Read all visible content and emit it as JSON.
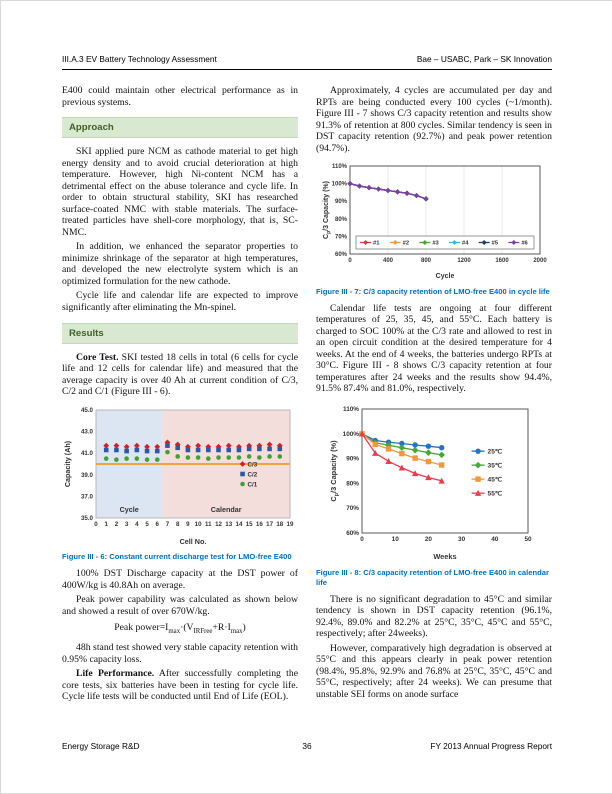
{
  "header": {
    "left": "III.A.3 EV Battery Technology Assessment",
    "right": "Bae – USABC, Park – SK Innovation"
  },
  "footer": {
    "left": "Energy Storage R&D",
    "page": "36",
    "right": "FY 2013 Annual Progress Report"
  },
  "styles": {
    "section_bg": "#d9e8d0",
    "section_border": "#c3d8b4",
    "section_text": "#3f6028",
    "caption_color": "#0070c0"
  },
  "left_column": {
    "blocks": [
      {
        "type": "para",
        "indent": false,
        "text": "E400 could maintain other electrical performance as in previous systems."
      },
      {
        "type": "section",
        "text": "Approach"
      },
      {
        "type": "para",
        "text": "SKI applied pure NCM as cathode material to get high energy density and to avoid crucial deterioration at high temperature. However, high Ni-content NCM has a detrimental effect on the abuse tolerance and cycle life. In order to obtain structural stability, SKI has researched surface-coated NMC with stable materials. The surface-treated particles have shell-core morphology, that is, SC-NMC."
      },
      {
        "type": "para",
        "text": "In addition, we enhanced the separator properties to minimize shrinkage of the separator at high temperatures, and developed the new electrolyte system which is an optimized formulation for the new cathode."
      },
      {
        "type": "para",
        "text": "Cycle life and calendar life are expected to improve significantly after eliminating the Mn-spinel."
      },
      {
        "type": "section",
        "text": "Results"
      },
      {
        "type": "para",
        "bold": "Core Test.",
        "text": " SKI tested 18 cells in total (6 cells for cycle life and 12 cells for calendar life) and measured that the average capacity is over 40 Ah at current condition of C/3, C/2 and C/1 (Figure III - 6)."
      },
      {
        "type": "chart",
        "chart": 0
      },
      {
        "type": "caption",
        "text": "Figure III - 6: Constant current discharge test for LMO-free E400"
      },
      {
        "type": "para",
        "text": "100% DST Discharge capacity at the DST power of 400W/kg is 40.8Ah on average."
      },
      {
        "type": "para",
        "text": "Peak power capability was calculated as shown below and showed a result of over 670W/kg."
      },
      {
        "type": "formula",
        "parts": [
          {
            "t": "Peak power=I"
          },
          {
            "t": "max",
            "sub": true
          },
          {
            "t": "·(V"
          },
          {
            "t": "IRFree",
            "sub": true
          },
          {
            "t": "+R·I"
          },
          {
            "t": "max",
            "sub": true
          },
          {
            "t": ")"
          }
        ]
      },
      {
        "type": "para",
        "text": "48h stand test showed very stable capacity retention with 0.95% capacity loss."
      },
      {
        "type": "para",
        "bold": "Life Performance.",
        "text": " After successfully completing the core tests, six batteries have been in testing for cycle life. Cycle life tests will be conducted until End of Life (EOL)."
      }
    ]
  },
  "right_column": {
    "blocks": [
      {
        "type": "para",
        "text": "Approximately, 4 cycles are accumulated per day and RPTs are being conducted every 100 cycles (~1/month). Figure III - 7 shows C/3 capacity retention and results show 91.3% of retention at 800 cycles. Similar tendency is seen in DST capacity retention (92.7%) and peak power retention (94.7%)."
      },
      {
        "type": "chart",
        "chart": 1
      },
      {
        "type": "caption",
        "text": "Figure III - 7: C/3 capacity retention of LMO-free E400 in cycle life"
      },
      {
        "type": "para",
        "text": "Calendar life tests are ongoing at four different temperatures of 25, 35, 45, and 55°C. Each battery is charged to SOC 100% at the C/3 rate and allowed to rest in an open circuit condition at the desired temperature for 4 weeks. At the end of 4 weeks, the batteries undergo RPTs at 30°C. Figure III - 8 shows C/3 capacity retention at four temperatures after 24 weeks and the results show 94.4%, 91.5% 87.4% and 81.0%, respectively."
      },
      {
        "type": "chart",
        "chart": 2
      },
      {
        "type": "caption",
        "text": "Figure III - 8: C/3 capacity retention of LMO-free E400 in calendar life"
      },
      {
        "type": "para",
        "text": "There is no significant degradation to 45°C and similar tendency is shown in DST capacity retention (96.1%, 92.4%, 89.0% and 82.2% at 25°C, 35°C, 45°C and 55°C, respectively; after 24weeks)."
      },
      {
        "type": "para",
        "text": "However, comparatively high degradation is observed at 55°C and this appears clearly in peak power retention (98.4%, 95.8%, 92.9% and 76.8% at 25°C, 35°C, 45°C and 55°C, respectively; after 24 weeks). We can presume that unstable SEI forms on anode surface"
      }
    ]
  },
  "chart_data": [
    {
      "id": "fig6",
      "name": "figure-iii-6-chart",
      "type": "scatter",
      "title": "",
      "xlabel": "Cell No.",
      "ylabel": [
        {
          "t": "Capacity (Ah)"
        }
      ],
      "xlim": [
        0,
        19
      ],
      "ylim": [
        35,
        45
      ],
      "xticks": [
        0,
        1,
        2,
        3,
        4,
        5,
        6,
        7,
        8,
        9,
        10,
        11,
        12,
        13,
        14,
        15,
        16,
        17,
        18,
        19
      ],
      "xtick_labels": [
        "0",
        "1",
        "2",
        "3",
        "4",
        "5",
        "6",
        "7",
        "8",
        "9",
        "10",
        "11",
        "12",
        "13",
        "14",
        "15",
        "16",
        "17",
        "18",
        "19"
      ],
      "yticks": [
        35,
        37,
        39,
        41,
        43,
        45
      ],
      "ytick_labels": [
        "35.0",
        "37.0",
        "39.0",
        "41.0",
        "43.0",
        "45.0"
      ],
      "grid": "none",
      "regions": [
        {
          "from": 0,
          "to": 6.5,
          "color": "#dce6f2",
          "label": "Cycle"
        },
        {
          "from": 6.5,
          "to": 19,
          "color": "#f3dedb",
          "label": "Calendar"
        }
      ],
      "refline": {
        "y": 40.0,
        "color": "#f2a33c"
      },
      "x": [
        1,
        2,
        3,
        4,
        5,
        6,
        7,
        8,
        9,
        10,
        11,
        12,
        13,
        14,
        15,
        16,
        17,
        18
      ],
      "series": [
        {
          "name": "C/3",
          "marker": "diamond",
          "color": "#d02028",
          "values": [
            41.7,
            41.7,
            41.6,
            41.7,
            41.6,
            41.6,
            42.0,
            41.8,
            41.6,
            41.7,
            41.6,
            41.6,
            41.7,
            41.6,
            41.7,
            41.7,
            41.8,
            41.7
          ]
        },
        {
          "name": "C/2",
          "marker": "square",
          "color": "#2e58a6",
          "values": [
            41.3,
            41.3,
            41.2,
            41.3,
            41.2,
            41.2,
            41.7,
            41.5,
            41.3,
            41.3,
            41.3,
            41.3,
            41.3,
            41.3,
            41.4,
            41.4,
            41.4,
            41.4
          ]
        },
        {
          "name": "C/1",
          "marker": "circle",
          "color": "#3fa03a",
          "values": [
            40.5,
            40.4,
            40.5,
            40.5,
            40.4,
            40.4,
            41.1,
            40.7,
            40.6,
            40.6,
            40.5,
            40.6,
            40.6,
            40.6,
            40.7,
            40.6,
            40.7,
            40.7
          ]
        }
      ],
      "legend_position": "inside-right"
    },
    {
      "id": "fig7",
      "name": "figure-iii-7-chart",
      "type": "line",
      "title": "",
      "xlabel": "Cycle",
      "ylabel": [
        {
          "t": "C"
        },
        {
          "t": "p",
          "sub": true
        },
        {
          "t": "/3 Capacity (%)"
        }
      ],
      "xlim": [
        0,
        2000
      ],
      "ylim": [
        60,
        110
      ],
      "xticks": [
        0,
        400,
        800,
        1200,
        1600,
        2000
      ],
      "xtick_labels": [
        "0",
        "400",
        "800",
        "1200",
        "1600",
        "2000"
      ],
      "yticks": [
        60,
        70,
        80,
        90,
        100,
        110
      ],
      "ytick_labels": [
        "60%",
        "70%",
        "80%",
        "90%",
        "100%",
        "110%"
      ],
      "grid": "v",
      "x": [
        0,
        100,
        200,
        300,
        400,
        500,
        600,
        700,
        800
      ],
      "series": [
        {
          "name": "#1",
          "marker": "diamond",
          "color": "#e0393e",
          "values": [
            100,
            98.6,
            97.7,
            96.9,
            96.1,
            95.3,
            94.5,
            93.2,
            91.3
          ]
        },
        {
          "name": "#2",
          "marker": "diamond",
          "color": "#f79a3d",
          "values": [
            100,
            98.6,
            97.7,
            96.9,
            96.1,
            95.3,
            94.5,
            93.2,
            91.3
          ]
        },
        {
          "name": "#3",
          "marker": "diamond",
          "color": "#4ba32f",
          "values": [
            100,
            98.6,
            97.7,
            96.9,
            96.1,
            95.3,
            94.5,
            93.2,
            91.3
          ]
        },
        {
          "name": "#4",
          "marker": "diamond",
          "color": "#41b0e4",
          "values": [
            100,
            98.6,
            97.7,
            96.9,
            96.1,
            95.3,
            94.5,
            93.2,
            91.3
          ]
        },
        {
          "name": "#5",
          "marker": "diamond",
          "color": "#1f3a68",
          "values": [
            100,
            98.6,
            97.7,
            96.9,
            96.1,
            95.3,
            94.5,
            93.2,
            91.3
          ]
        },
        {
          "name": "#6",
          "marker": "diamond",
          "color": "#7c3fa5",
          "values": [
            100,
            98.6,
            97.7,
            96.9,
            96.1,
            95.3,
            94.5,
            93.2,
            91.3
          ]
        }
      ],
      "legend_position": "inside-bottom-box"
    },
    {
      "id": "fig8",
      "name": "figure-iii-8-chart",
      "type": "line",
      "title": "",
      "xlabel": "Weeks",
      "ylabel": [
        {
          "t": "C"
        },
        {
          "t": "p",
          "sub": true
        },
        {
          "t": "/3 Capacity (%)"
        }
      ],
      "xlim": [
        0,
        50
      ],
      "ylim": [
        60,
        110
      ],
      "xticks": [
        0,
        10,
        20,
        30,
        40,
        50
      ],
      "xtick_labels": [
        "0",
        "10",
        "20",
        "30",
        "40",
        "50"
      ],
      "yticks": [
        60,
        70,
        80,
        90,
        100,
        110
      ],
      "ytick_labels": [
        "60%",
        "70%",
        "80%",
        "90%",
        "100%",
        "110%"
      ],
      "grid": "none",
      "x": [
        0,
        4,
        8,
        12,
        16,
        20,
        24
      ],
      "series": [
        {
          "name": "25℃",
          "marker": "circle",
          "color": "#2472c8",
          "values": [
            100,
            97.3,
            96.6,
            96.1,
            95.5,
            95.0,
            94.4
          ]
        },
        {
          "name": "35℃",
          "marker": "diamond",
          "color": "#47a63c",
          "values": [
            100,
            96.4,
            95.4,
            94.4,
            93.4,
            92.4,
            91.5
          ]
        },
        {
          "name": "45℃",
          "marker": "square",
          "color": "#f0993c",
          "values": [
            100,
            95.7,
            93.9,
            92.0,
            90.2,
            88.8,
            87.4
          ]
        },
        {
          "name": "55℃",
          "marker": "triangle",
          "color": "#ea3c50",
          "values": [
            100,
            92.2,
            88.9,
            86.3,
            84.0,
            82.4,
            81.0
          ]
        }
      ],
      "legend_position": "inside-right"
    }
  ]
}
